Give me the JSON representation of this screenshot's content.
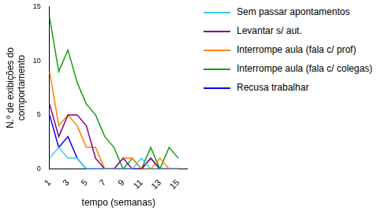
{
  "chart_data": {
    "type": "line",
    "x_label": "tempo (semanas)",
    "y_label": "N.º de exibições do comportamento",
    "categories": [
      1,
      null,
      3,
      null,
      5,
      null,
      7,
      null,
      9,
      null,
      11,
      null,
      13,
      null,
      15,
      null
    ],
    "series": [
      {
        "name": "Sem passar apontamentos",
        "color": "#33ccee",
        "values": [
          1,
          2,
          1,
          1,
          0,
          0,
          0,
          0,
          0,
          0,
          1,
          0,
          0,
          0,
          0,
          null
        ]
      },
      {
        "name": "Levantar s/ aut.",
        "color": "#800080",
        "values": [
          6,
          3,
          5,
          5,
          4,
          1,
          0,
          0,
          1,
          0,
          0,
          1,
          0,
          0,
          0,
          null
        ]
      },
      {
        "name": "Interrompe aula (fala c/ prof)",
        "color": "#ff8000",
        "values": [
          9,
          4,
          5,
          4,
          2,
          2,
          0,
          0,
          1,
          1,
          0,
          0,
          1,
          0,
          0,
          null
        ]
      },
      {
        "name": "Interrompe aula (fala c/ colegas)",
        "color": "#11a011",
        "values": [
          14,
          9,
          11,
          8,
          6,
          5,
          3,
          2,
          0,
          1,
          0,
          2,
          0,
          2,
          1,
          null
        ]
      },
      {
        "name": "Recusa trabalhar",
        "color": "#0000ff",
        "values": [
          5,
          2,
          3,
          1,
          0,
          0,
          0,
          0,
          0,
          0,
          0,
          1,
          0,
          0,
          0,
          null
        ]
      }
    ],
    "ylim": [
      0,
      15
    ],
    "yticks": [
      0,
      5,
      10,
      15
    ],
    "grid": false,
    "legend": "right"
  }
}
